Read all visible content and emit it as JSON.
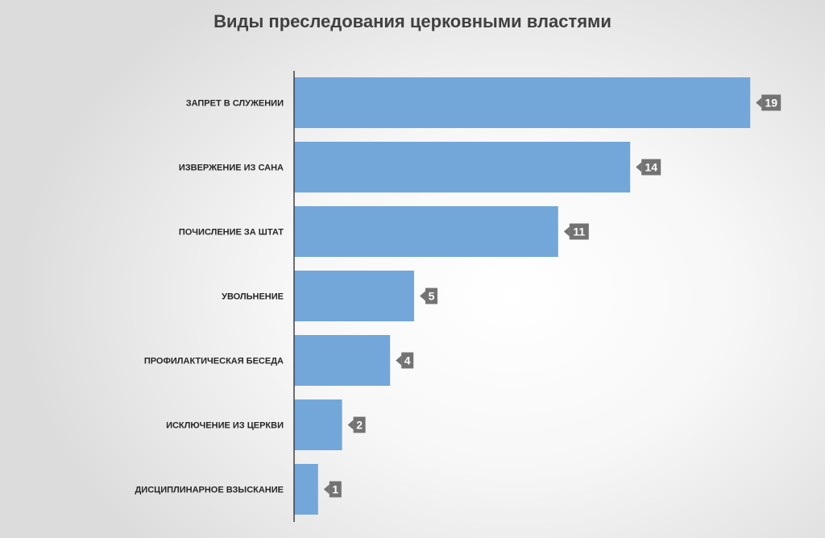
{
  "chart_data": {
    "type": "bar",
    "orientation": "horizontal",
    "title": "Виды преследования церковными властями",
    "categories": [
      "ЗАПРЕТ В СЛУЖЕНИИ",
      "ИЗВЕРЖЕНИЕ ИЗ САНА",
      "ПОЧИСЛЕНИЕ ЗА ШТАТ",
      "УВОЛЬНЕНИЕ",
      "ПРОФИЛАКТИЧЕСКАЯ БЕСЕДА",
      "ИСКЛЮЧЕНИЕ ИЗ ЦЕРКВИ",
      "ДИСЦИПЛИНАРНОЕ ВЗЫСКАНИЕ"
    ],
    "values": [
      19,
      14,
      11,
      5,
      4,
      2,
      1
    ],
    "xlim": [
      0,
      20
    ],
    "grid": false,
    "legend": "none",
    "data_labels": true,
    "colors": {
      "bar": "#73a7d9",
      "label_box": "#737373",
      "axis": "#404040"
    }
  }
}
